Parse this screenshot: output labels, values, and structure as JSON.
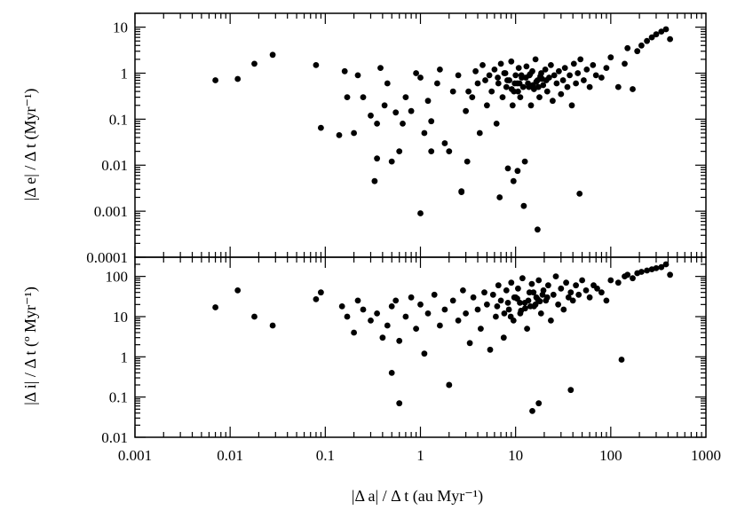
{
  "chart_data": [
    {
      "type": "scatter",
      "panel": "top",
      "ylabel": "|Δ e| / Δ t (Myr⁻¹)",
      "xlabel": "",
      "xscale": "log",
      "yscale": "log",
      "xlim": [
        0.001,
        1000
      ],
      "ylim": [
        0.0001,
        20
      ],
      "ytick_labels": [
        "10",
        "1",
        "0.1",
        "0.01",
        "0.001",
        "0.0001"
      ],
      "xtick_labels": [],
      "marker_color": "#000000",
      "grid": false,
      "x": [
        0.007,
        0.012,
        0.018,
        0.028,
        0.08,
        0.09,
        0.14,
        0.16,
        0.17,
        0.2,
        0.22,
        0.25,
        0.3,
        0.33,
        0.35,
        0.38,
        0.42,
        0.45,
        0.5,
        0.55,
        0.6,
        0.65,
        0.7,
        0.8,
        0.9,
        1.0,
        1.1,
        1.2,
        1.3,
        1.5,
        1.6,
        1.8,
        2.0,
        2.2,
        2.5,
        2.7,
        3.0,
        3.2,
        3.5,
        3.8,
        4.0,
        4.2,
        4.5,
        4.8,
        5.0,
        5.3,
        5.6,
        6.0,
        6.3,
        6.6,
        7.0,
        7.3,
        7.6,
        8.0,
        8.3,
        8.6,
        9.0,
        9.3,
        9.6,
        10.0,
        10.4,
        10.8,
        11.2,
        11.6,
        12.0,
        12.5,
        13.0,
        13.5,
        14.0,
        14.5,
        15.0,
        15.6,
        16.2,
        17.0,
        17.8,
        18.6,
        19.5,
        20.5,
        21.5,
        22.5,
        23.5,
        24.5,
        25.5,
        27.0,
        28.5,
        30.0,
        31.5,
        33.0,
        35.0,
        37.0,
        39.0,
        41.0,
        43.0,
        45.0,
        48.0,
        52.0,
        56.0,
        60.0,
        65.0,
        70.0,
        80.0,
        90.0,
        100.0,
        120.0,
        140.0,
        150.0,
        170.0,
        190.0,
        210.0,
        240.0,
        270.0,
        300.0,
        340.0,
        380.0,
        420.0,
        6.5,
        8.2,
        9.8,
        11.5,
        13.8,
        16.5,
        19.0,
        7.8,
        10.6,
        12.8,
        15.2,
        18.2,
        21.0,
        9.1,
        11.0,
        14.2,
        17.4,
        0.35,
        2.7,
        1.0,
        17.0,
        47.0,
        9.5,
        10.5,
        12.2,
        1.3,
        3.1,
        6.8
      ],
      "y": [
        0.7,
        0.75,
        1.6,
        2.5,
        1.5,
        0.065,
        0.045,
        1.1,
        0.3,
        0.05,
        0.9,
        0.3,
        0.12,
        0.0045,
        0.08,
        1.3,
        0.2,
        0.6,
        0.012,
        0.14,
        0.02,
        0.08,
        0.3,
        0.15,
        1.0,
        0.8,
        0.05,
        0.25,
        0.02,
        0.6,
        1.2,
        0.03,
        0.02,
        0.4,
        0.9,
        0.0026,
        0.15,
        0.4,
        0.3,
        1.1,
        0.6,
        0.05,
        1.5,
        0.7,
        0.2,
        0.9,
        0.4,
        1.2,
        0.08,
        0.6,
        1.6,
        0.3,
        1.0,
        0.5,
        0.0085,
        0.7,
        1.8,
        0.2,
        0.4,
        0.9,
        0.6,
        1.3,
        0.3,
        0.8,
        0.5,
        0.012,
        1.4,
        0.6,
        0.9,
        0.2,
        1.1,
        0.45,
        2.0,
        0.7,
        0.3,
        1.0,
        0.55,
        1.2,
        0.4,
        0.8,
        1.5,
        0.25,
        0.9,
        0.6,
        1.1,
        0.35,
        0.7,
        1.3,
        0.5,
        0.9,
        0.2,
        1.6,
        0.6,
        1.0,
        2.0,
        0.7,
        1.2,
        0.5,
        1.5,
        0.9,
        0.8,
        1.3,
        2.2,
        0.5,
        1.6,
        3.5,
        0.45,
        3.0,
        4.0,
        5.0,
        6.0,
        7.0,
        8.0,
        9.0,
        5.5,
        0.8,
        0.7,
        0.6,
        0.9,
        0.5,
        0.65,
        0.75,
        1.0,
        0.4,
        0.8,
        0.55,
        0.85,
        0.7,
        0.45,
        0.6,
        0.95,
        0.5,
        0.014,
        0.0027,
        0.0009,
        0.0004,
        0.0024,
        0.0045,
        0.0075,
        0.0013,
        0.09,
        0.012,
        0.002
      ]
    },
    {
      "type": "scatter",
      "panel": "bottom",
      "ylabel": "|Δ i| / Δ t (º Myr⁻¹)",
      "xlabel": "|Δ a| / Δ t (au Myr⁻¹)",
      "xscale": "log",
      "yscale": "log",
      "xlim": [
        0.001,
        1000
      ],
      "ylim": [
        0.01,
        300
      ],
      "ytick_labels": [
        "100",
        "10",
        "1",
        "0.1",
        "0.01"
      ],
      "xtick_labels": [
        "0.001",
        "0.01",
        "0.1",
        "1",
        "10",
        "100",
        "1000"
      ],
      "marker_color": "#000000",
      "grid": false,
      "x": [
        0.007,
        0.012,
        0.018,
        0.028,
        0.08,
        0.09,
        0.15,
        0.17,
        0.2,
        0.22,
        0.25,
        0.3,
        0.35,
        0.4,
        0.45,
        0.5,
        0.55,
        0.6,
        0.7,
        0.8,
        0.9,
        1.0,
        1.1,
        1.2,
        1.4,
        1.6,
        1.8,
        2.0,
        2.2,
        2.5,
        2.8,
        3.0,
        3.3,
        3.6,
        4.0,
        4.3,
        4.7,
        5.0,
        5.4,
        5.8,
        6.2,
        6.6,
        7.0,
        7.5,
        8.0,
        8.5,
        9.0,
        9.5,
        10.0,
        10.6,
        11.2,
        11.8,
        12.5,
        13.2,
        14.0,
        14.8,
        15.6,
        16.5,
        17.5,
        18.5,
        19.6,
        20.8,
        22.0,
        23.5,
        25.0,
        26.5,
        28.0,
        30.0,
        32.0,
        34.0,
        36.0,
        38.0,
        40.0,
        43.0,
        46.0,
        50.0,
        55.0,
        60.0,
        66.0,
        72.0,
        80.0,
        90.0,
        100.0,
        120.0,
        140.0,
        150.0,
        170.0,
        190.0,
        210.0,
        240.0,
        270.0,
        300.0,
        340.0,
        380.0,
        420.0,
        6.4,
        8.3,
        9.7,
        11.4,
        13.6,
        16.2,
        19.2,
        7.6,
        10.4,
        12.6,
        15.4,
        18.0,
        21.5,
        8.9,
        11.1,
        14.3,
        17.1,
        0.6,
        15.0,
        17.5,
        38.0,
        130.0,
        0.5,
        2.0
      ],
      "y": [
        17,
        45,
        10,
        6,
        27,
        40,
        18,
        10,
        4,
        25,
        15,
        8,
        12,
        3,
        6,
        18,
        25,
        2.5,
        10,
        30,
        5,
        20,
        1.2,
        12,
        35,
        6,
        15,
        0.2,
        25,
        8,
        45,
        12,
        2.2,
        30,
        15,
        5,
        40,
        20,
        1.5,
        35,
        10,
        60,
        25,
        3,
        45,
        15,
        70,
        8,
        30,
        50,
        12,
        90,
        22,
        5,
        40,
        65,
        18,
        30,
        80,
        12,
        45,
        25,
        60,
        8,
        35,
        100,
        20,
        50,
        15,
        70,
        30,
        40,
        25,
        60,
        35,
        80,
        45,
        30,
        60,
        50,
        40,
        25,
        80,
        70,
        100,
        110,
        90,
        120,
        130,
        140,
        150,
        160,
        170,
        200,
        110,
        18,
        22,
        30,
        14,
        25,
        20,
        35,
        12,
        28,
        16,
        40,
        24,
        30,
        10,
        22,
        18,
        27,
        0.07,
        0.045,
        0.07,
        0.15,
        0.85,
        0.4,
        0.2
      ]
    }
  ]
}
